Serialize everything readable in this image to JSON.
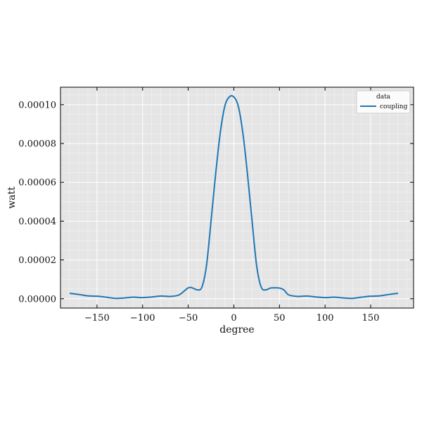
{
  "chart_data": {
    "type": "line",
    "xlabel": "degree",
    "ylabel": "watt",
    "xlim": [
      -190,
      197
    ],
    "ylim": [
      -4.8e-06,
      0.000109
    ],
    "x_ticks": [
      -150,
      -100,
      -50,
      0,
      50,
      100,
      150
    ],
    "x_tick_labels": [
      "−150",
      "−100",
      "−50",
      "0",
      "50",
      "100",
      "150"
    ],
    "y_ticks": [
      0,
      2e-05,
      4e-05,
      6e-05,
      8e-05,
      0.0001
    ],
    "y_tick_labels": [
      "0.00000",
      "0.00002",
      "0.00004",
      "0.00006",
      "0.00008",
      "0.00010"
    ],
    "grid": true,
    "legend": {
      "title": "data",
      "placement": "top-right"
    },
    "colors": {
      "line": "#1f77b4",
      "background": "#e5e5e5",
      "grid": "#ffffff"
    },
    "series": [
      {
        "name": "coupling",
        "x": [
          -180,
          -170,
          -160,
          -150,
          -140,
          -130,
          -120,
          -110,
          -100,
          -90,
          -80,
          -70,
          -60,
          -50,
          -45,
          -40,
          -35,
          -30,
          -25,
          -20,
          -15,
          -10,
          -5,
          0,
          5,
          10,
          15,
          20,
          25,
          30,
          35,
          40,
          45,
          50,
          55,
          60,
          70,
          80,
          90,
          100,
          110,
          120,
          130,
          140,
          150,
          160,
          170,
          180
        ],
        "y": [
          2.8e-06,
          2.2e-06,
          1.5e-06,
          1.3e-06,
          8e-07,
          2e-07,
          4e-07,
          8e-07,
          6e-07,
          9e-07,
          1.4e-06,
          1.2e-06,
          2e-06,
          5.6e-06,
          5.5e-06,
          4.6e-06,
          6e-06,
          1.7e-05,
          4e-05,
          6.4e-05,
          8.5e-05,
          9.9e-05,
          0.000104,
          0.000104,
          9.9e-05,
          8.5e-05,
          6.4e-05,
          4e-05,
          1.7e-05,
          6e-06,
          4.6e-06,
          5.5e-06,
          5.6e-06,
          5.5e-06,
          4.5e-06,
          2e-06,
          1.2e-06,
          1.4e-06,
          9e-07,
          6e-07,
          8e-07,
          4e-07,
          2e-07,
          8e-07,
          1.3e-06,
          1.5e-06,
          2.2e-06,
          2.8e-06
        ]
      }
    ]
  }
}
